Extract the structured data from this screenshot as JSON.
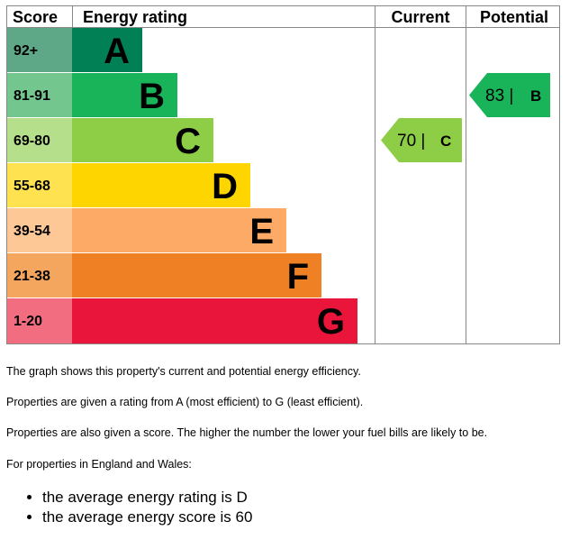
{
  "chart_data": {
    "type": "bar",
    "headers": {
      "score": "Score",
      "rating": "Energy rating",
      "current": "Current",
      "potential": "Potential"
    },
    "bands": [
      {
        "score": "92+",
        "letter": "A",
        "color": "#008054"
      },
      {
        "score": "81-91",
        "letter": "B",
        "color": "#19b459"
      },
      {
        "score": "69-80",
        "letter": "C",
        "color": "#8dce46"
      },
      {
        "score": "55-68",
        "letter": "D",
        "color": "#ffd500"
      },
      {
        "score": "39-54",
        "letter": "E",
        "color": "#fcaa65"
      },
      {
        "score": "21-38",
        "letter": "F",
        "color": "#ef8023"
      },
      {
        "score": "1-20",
        "letter": "G",
        "color": "#e9153b"
      }
    ],
    "current": {
      "value": 70,
      "letter": "C",
      "display": "70 |",
      "color": "#8dce46"
    },
    "potential": {
      "value": 83,
      "letter": "B",
      "display": "83 |",
      "color": "#19b459"
    }
  },
  "notes": {
    "line1": "The graph shows this property's current and potential energy efficiency.",
    "line2": "Properties are given a rating from A (most efficient) to G (least efficient).",
    "line3": "Properties are also given a score. The higher the number the lower your fuel bills are likely to be.",
    "line4": "For properties in England and Wales:",
    "bullets": [
      "the average energy rating is D",
      "the average energy score is 60"
    ]
  }
}
